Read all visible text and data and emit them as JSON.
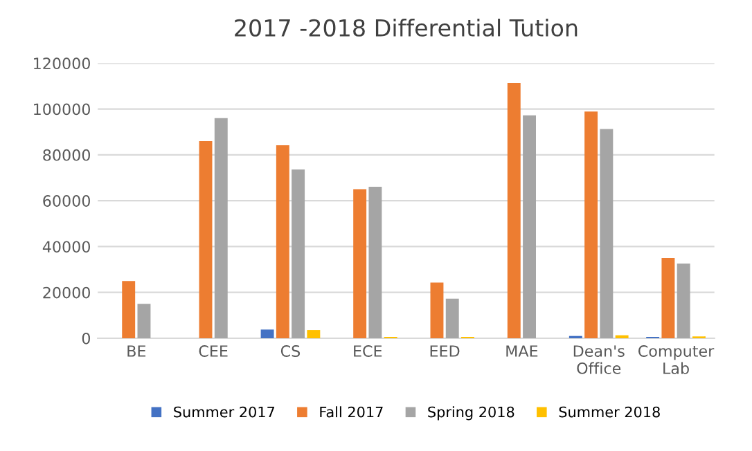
{
  "chart_data": {
    "type": "bar",
    "title": "2017 -2018 Differential Tution",
    "categories": [
      "BE",
      "CEE",
      "CS",
      "ECE",
      "EED",
      "MAE",
      "Dean's Office",
      "Computer Lab"
    ],
    "series": [
      {
        "name": "Summer 2017",
        "color": "#4472c4",
        "values": [
          0,
          0,
          3800,
          0,
          0,
          0,
          1000,
          600
        ]
      },
      {
        "name": "Fall 2017",
        "color": "#ed7d31",
        "values": [
          25000,
          86000,
          84200,
          65000,
          24300,
          111300,
          98900,
          35000
        ]
      },
      {
        "name": "Spring 2018",
        "color": "#a5a5a5",
        "values": [
          15000,
          96000,
          73600,
          66100,
          17300,
          97200,
          91300,
          32600
        ]
      },
      {
        "name": "Summer 2018",
        "color": "#ffc000",
        "values": [
          0,
          0,
          3600,
          600,
          600,
          0,
          1300,
          800
        ]
      }
    ],
    "ylim": [
      0,
      120000
    ],
    "yticks": [
      0,
      20000,
      40000,
      60000,
      80000,
      100000,
      120000
    ],
    "grid": "y",
    "legend": "bottom"
  }
}
